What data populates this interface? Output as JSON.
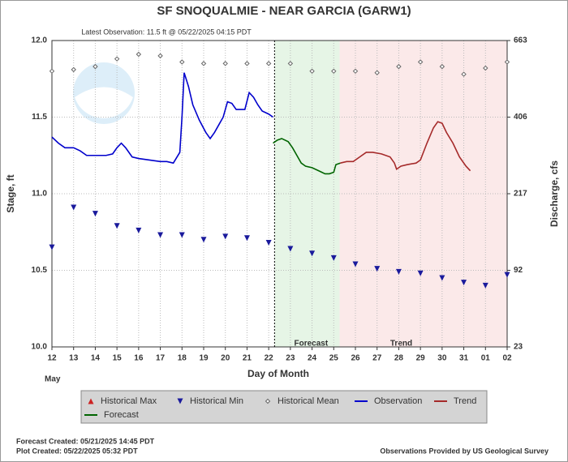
{
  "chart_data": {
    "type": "line",
    "title": "SF SNOQUALMIE - NEAR GARCIA  (GARW1)",
    "subtitle": "Latest Observation: 11.5 ft @ 05/22/2025 04:15 PDT",
    "ylabel": "Stage, ft",
    "y2label": "Discharge, cfs",
    "xlabel": "Day of Month",
    "month_label": "May",
    "xlim": [
      12,
      33
    ],
    "xticks": [
      12,
      13,
      14,
      15,
      16,
      17,
      18,
      19,
      20,
      21,
      22,
      23,
      24,
      25,
      26,
      27,
      28,
      29,
      30,
      31,
      {
        "value": 32,
        "label": "01"
      },
      {
        "value": 33,
        "label": "02"
      }
    ],
    "ylim": [
      10.0,
      12.0
    ],
    "yticks": [
      {
        "value": 10,
        "label": "10.0"
      },
      {
        "value": 10.5,
        "label": "10.5"
      },
      {
        "value": 11,
        "label": "11.0"
      },
      {
        "value": 11.5,
        "label": "11.5"
      },
      {
        "value": 12,
        "label": "12.0"
      }
    ],
    "y2ticks": [
      23,
      92,
      217,
      406,
      663
    ],
    "grid": true,
    "observation_time": 22.27,
    "regions": [
      {
        "label": "Forecast",
        "range": [
          22.27,
          25.27
        ],
        "color": "#e6f5e6"
      },
      {
        "label": "Trend",
        "range": [
          25.27,
          33
        ],
        "color": "#fbe9e9"
      }
    ],
    "series": [
      {
        "name": "Historical Max",
        "color": "#cc2222",
        "marker": "triangle-up"
      },
      {
        "name": "Historical Min",
        "color": "#1a1a9c",
        "marker": "triangle-down",
        "x": [
          12,
          13,
          14,
          15,
          16,
          17,
          18,
          19,
          20,
          21,
          22,
          23,
          24,
          25,
          26,
          27,
          28,
          29,
          30,
          31,
          32,
          33
        ],
        "values": [
          10.65,
          10.91,
          10.87,
          10.79,
          10.76,
          10.73,
          10.73,
          10.7,
          10.72,
          10.71,
          10.68,
          10.64,
          10.61,
          10.58,
          10.54,
          10.51,
          10.49,
          10.48,
          10.45,
          10.42,
          10.4,
          10.47
        ]
      },
      {
        "name": "Historical Mean",
        "color": "#666666",
        "marker": "diamond",
        "x": [
          12,
          13,
          14,
          15,
          16,
          17,
          18,
          19,
          20,
          21,
          22,
          23,
          24,
          25,
          26,
          27,
          28,
          29,
          30,
          31,
          32,
          33
        ],
        "values": [
          11.8,
          11.81,
          11.83,
          11.88,
          11.91,
          11.9,
          11.86,
          11.85,
          11.85,
          11.85,
          11.85,
          11.85,
          11.8,
          11.8,
          11.8,
          11.79,
          11.83,
          11.86,
          11.83,
          11.78,
          11.82,
          11.86
        ]
      },
      {
        "name": "Observation",
        "color": "#0000cc",
        "marker": "line",
        "x": [
          12.0,
          12.3,
          12.6,
          13.0,
          13.3,
          13.6,
          14.0,
          14.5,
          14.8,
          15.0,
          15.2,
          15.4,
          15.7,
          16.0,
          16.5,
          17.0,
          17.3,
          17.6,
          17.9,
          18.0,
          18.1,
          18.3,
          18.5,
          18.8,
          19.1,
          19.3,
          19.5,
          19.7,
          19.9,
          20.1,
          20.3,
          20.5,
          20.9,
          21.1,
          21.3,
          21.5,
          21.7,
          22.0,
          22.2
        ],
        "values": [
          11.37,
          11.33,
          11.3,
          11.3,
          11.28,
          11.25,
          11.25,
          11.25,
          11.26,
          11.3,
          11.33,
          11.3,
          11.24,
          11.23,
          11.22,
          11.21,
          11.21,
          11.2,
          11.27,
          11.5,
          11.79,
          11.7,
          11.58,
          11.48,
          11.4,
          11.36,
          11.4,
          11.45,
          11.5,
          11.6,
          11.59,
          11.55,
          11.55,
          11.66,
          11.63,
          11.58,
          11.54,
          11.52,
          11.5
        ]
      },
      {
        "name": "Trend",
        "color": "#a52a2a",
        "marker": "line",
        "x": [
          25.3,
          25.6,
          25.9,
          26.2,
          26.5,
          26.8,
          27.2,
          27.6,
          27.8,
          27.9,
          28.1,
          28.4,
          28.8,
          29.0,
          29.3,
          29.6,
          29.8,
          30.0,
          30.2,
          30.5,
          30.8,
          31.1,
          31.3
        ],
        "values": [
          11.2,
          11.21,
          11.21,
          11.24,
          11.27,
          11.27,
          11.26,
          11.24,
          11.2,
          11.16,
          11.18,
          11.19,
          11.2,
          11.22,
          11.33,
          11.43,
          11.47,
          11.46,
          11.4,
          11.33,
          11.24,
          11.18,
          11.15
        ]
      },
      {
        "name": "Forecast",
        "color": "#006400",
        "marker": "line",
        "x": [
          22.2,
          22.4,
          22.6,
          22.9,
          23.1,
          23.3,
          23.5,
          23.7,
          24.0,
          24.3,
          24.6,
          24.8,
          25.0,
          25.1,
          25.3
        ],
        "values": [
          11.33,
          11.35,
          11.36,
          11.34,
          11.3,
          11.25,
          11.2,
          11.18,
          11.17,
          11.15,
          11.13,
          11.13,
          11.14,
          11.19,
          11.2
        ]
      }
    ],
    "footer": {
      "forecast_created": "Forecast Created: 05/21/2025 14:45 PDT",
      "plot_created": "Plot Created: 05/22/2025 05:32 PDT",
      "source": "Observations Provided by US Geological Survey"
    }
  }
}
